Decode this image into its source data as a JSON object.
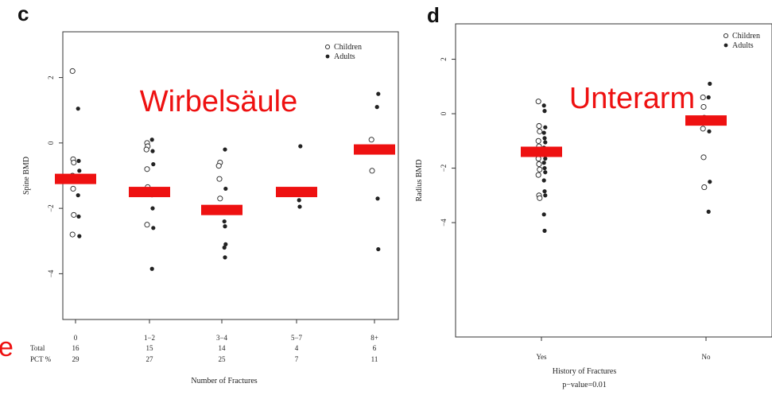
{
  "chart_data": [
    {
      "panel": "c",
      "type": "scatter",
      "overlay_label": "Wirbelsäule",
      "xlabel": "Number of Fractures",
      "ylabel": "Spine BMD",
      "categories": [
        "0",
        "1−2",
        "3−4",
        "5−7",
        "8+"
      ],
      "ylim": [
        -5.4,
        3.4
      ],
      "yticks": [
        "2",
        "0",
        "−2",
        "−4"
      ],
      "ytick_values": [
        2,
        0,
        -2,
        -4
      ],
      "table": {
        "rows": [
          {
            "label": "Total",
            "values": [
              "16",
              "15",
              "14",
              "4",
              "6"
            ]
          },
          {
            "label": "PCT %",
            "values": [
              "29",
              "27",
              "25",
              "7",
              "11"
            ]
          }
        ]
      },
      "legend": {
        "position": "top-right",
        "entries": [
          "Children",
          "Adults"
        ]
      },
      "marker_color": "#222222",
      "bar_color": "#ee1111",
      "series": [
        {
          "name": "Children",
          "marker": "open-circle",
          "points": [
            {
              "cat": 0,
              "y": 2.2
            },
            {
              "cat": 0,
              "y": -0.5
            },
            {
              "cat": 0,
              "y": -0.6
            },
            {
              "cat": 0,
              "y": -1.0
            },
            {
              "cat": 0,
              "y": -1.4
            },
            {
              "cat": 0,
              "y": -2.2
            },
            {
              "cat": 0,
              "y": -2.8
            },
            {
              "cat": 1,
              "y": 0.0
            },
            {
              "cat": 1,
              "y": -0.1
            },
            {
              "cat": 1,
              "y": -0.2
            },
            {
              "cat": 1,
              "y": -0.8
            },
            {
              "cat": 1,
              "y": -1.35
            },
            {
              "cat": 1,
              "y": -1.5
            },
            {
              "cat": 1,
              "y": -2.5
            },
            {
              "cat": 2,
              "y": -0.6
            },
            {
              "cat": 2,
              "y": -0.7
            },
            {
              "cat": 2,
              "y": -1.1
            },
            {
              "cat": 2,
              "y": -1.7
            },
            {
              "cat": 4,
              "y": 0.1
            },
            {
              "cat": 4,
              "y": -0.85
            }
          ]
        },
        {
          "name": "Adults",
          "marker": "filled-circle",
          "points": [
            {
              "cat": 0,
              "y": 1.05
            },
            {
              "cat": 0,
              "y": -0.55
            },
            {
              "cat": 0,
              "y": -0.85
            },
            {
              "cat": 0,
              "y": -1.6
            },
            {
              "cat": 0,
              "y": -2.25
            },
            {
              "cat": 0,
              "y": -2.85
            },
            {
              "cat": 1,
              "y": 0.1
            },
            {
              "cat": 1,
              "y": -0.25
            },
            {
              "cat": 1,
              "y": -0.65
            },
            {
              "cat": 1,
              "y": -1.6
            },
            {
              "cat": 1,
              "y": -2.0
            },
            {
              "cat": 1,
              "y": -2.6
            },
            {
              "cat": 1,
              "y": -3.85
            },
            {
              "cat": 2,
              "y": -0.2
            },
            {
              "cat": 2,
              "y": -1.4
            },
            {
              "cat": 2,
              "y": -2.4
            },
            {
              "cat": 2,
              "y": -2.55
            },
            {
              "cat": 2,
              "y": -3.1
            },
            {
              "cat": 2,
              "y": -3.2
            },
            {
              "cat": 2,
              "y": -3.5
            },
            {
              "cat": 3,
              "y": -0.1
            },
            {
              "cat": 3,
              "y": -1.75
            },
            {
              "cat": 3,
              "y": -1.95
            },
            {
              "cat": 4,
              "y": 1.5
            },
            {
              "cat": 4,
              "y": 1.1
            },
            {
              "cat": 4,
              "y": -1.7
            },
            {
              "cat": 4,
              "y": -3.25
            }
          ]
        }
      ],
      "means": [
        {
          "cat": 0,
          "y": -1.1
        },
        {
          "cat": 1,
          "y": -1.5
        },
        {
          "cat": 2,
          "y": -2.05
        },
        {
          "cat": 3,
          "y": -1.5
        },
        {
          "cat": 4,
          "y": -0.2
        }
      ]
    },
    {
      "panel": "d",
      "type": "scatter",
      "overlay_label": "Unterarm",
      "xlabel": "History of Fractures",
      "subtitle": "p−value=0.01",
      "ylabel": "Radius BMD",
      "categories": [
        "Yes",
        "No"
      ],
      "ylim": [
        -8.2,
        3.3
      ],
      "yticks": [
        "2",
        "0",
        "−2",
        "−4"
      ],
      "ytick_values": [
        2,
        0,
        -2,
        -4
      ],
      "legend": {
        "position": "top-right",
        "entries": [
          "Children",
          "Adults"
        ]
      },
      "marker_color": "#222222",
      "bar_color": "#ee1111",
      "series": [
        {
          "name": "Children",
          "marker": "open-circle",
          "points": [
            {
              "cat": 0,
              "y": 0.45
            },
            {
              "cat": 0,
              "y": -0.45
            },
            {
              "cat": 0,
              "y": -0.65
            },
            {
              "cat": 0,
              "y": -1.0
            },
            {
              "cat": 0,
              "y": -1.2
            },
            {
              "cat": 0,
              "y": -1.4
            },
            {
              "cat": 0,
              "y": -1.65
            },
            {
              "cat": 0,
              "y": -1.85
            },
            {
              "cat": 0,
              "y": -2.05
            },
            {
              "cat": 0,
              "y": -2.25
            },
            {
              "cat": 0,
              "y": -3.0
            },
            {
              "cat": 0,
              "y": -3.1
            },
            {
              "cat": 1,
              "y": 0.6
            },
            {
              "cat": 1,
              "y": 0.25
            },
            {
              "cat": 1,
              "y": -0.15
            },
            {
              "cat": 1,
              "y": -0.55
            },
            {
              "cat": 1,
              "y": -1.6
            },
            {
              "cat": 1,
              "y": -2.7
            }
          ]
        },
        {
          "name": "Adults",
          "marker": "filled-circle",
          "points": [
            {
              "cat": 0,
              "y": 0.3
            },
            {
              "cat": 0,
              "y": 0.1
            },
            {
              "cat": 0,
              "y": -0.5
            },
            {
              "cat": 0,
              "y": -0.7
            },
            {
              "cat": 0,
              "y": -0.9
            },
            {
              "cat": 0,
              "y": -1.05
            },
            {
              "cat": 0,
              "y": -1.25
            },
            {
              "cat": 0,
              "y": -1.45
            },
            {
              "cat": 0,
              "y": -1.65
            },
            {
              "cat": 0,
              "y": -1.8
            },
            {
              "cat": 0,
              "y": -2.0
            },
            {
              "cat": 0,
              "y": -2.15
            },
            {
              "cat": 0,
              "y": -2.45
            },
            {
              "cat": 0,
              "y": -2.85
            },
            {
              "cat": 0,
              "y": -3.0
            },
            {
              "cat": 0,
              "y": -3.7
            },
            {
              "cat": 0,
              "y": -4.3
            },
            {
              "cat": 1,
              "y": 1.1
            },
            {
              "cat": 1,
              "y": 0.6
            },
            {
              "cat": 1,
              "y": -0.65
            },
            {
              "cat": 1,
              "y": -2.5
            },
            {
              "cat": 1,
              "y": -3.6
            }
          ]
        }
      ],
      "means": [
        {
          "cat": 0,
          "y": -1.4
        },
        {
          "cat": 1,
          "y": -0.25
        }
      ]
    }
  ],
  "partial_text": "e"
}
